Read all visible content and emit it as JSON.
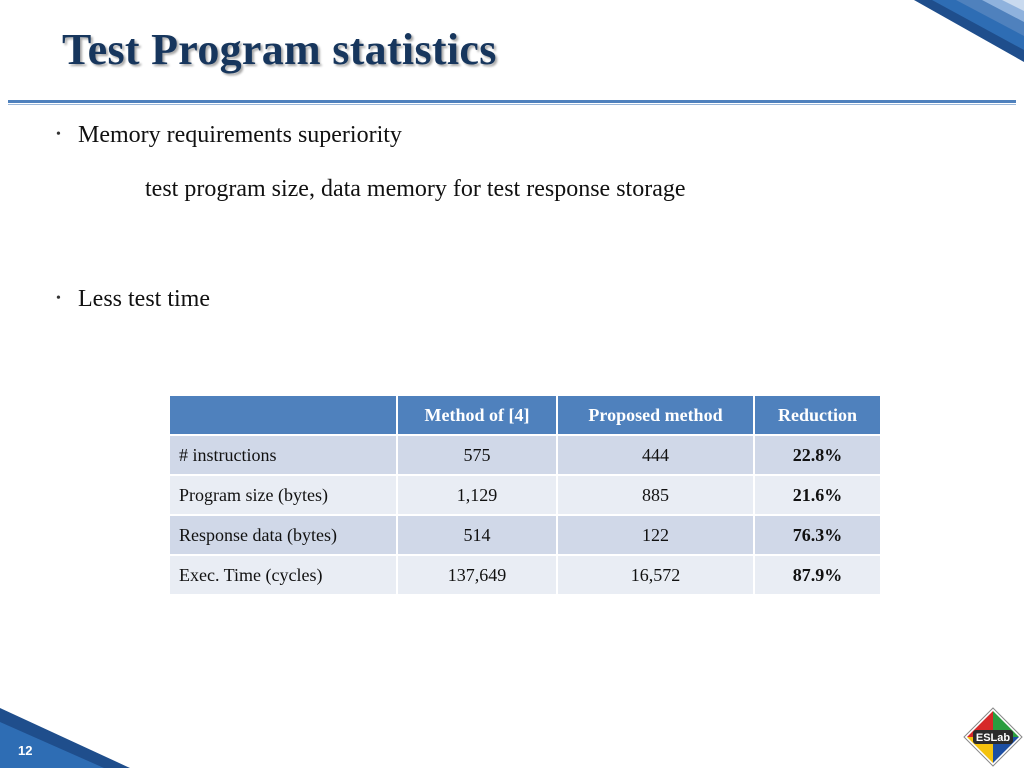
{
  "slide": {
    "title": "Test Program statistics",
    "page_number": "12",
    "logo_text": "ESLab"
  },
  "bullets": [
    {
      "text": "Memory requirements superiority",
      "subtext": "test program size, data memory for test response storage"
    },
    {
      "text": "Less test time"
    }
  ],
  "table": {
    "headers": [
      "",
      "Method of [4]",
      "Proposed method",
      "Reduction"
    ],
    "rows": [
      {
        "label": "# instructions",
        "method4": "575",
        "proposed": "444",
        "reduction": "22.8%"
      },
      {
        "label": "Program size (bytes)",
        "method4": "1,129",
        "proposed": "885",
        "reduction": "21.6%"
      },
      {
        "label": "Response data (bytes)",
        "method4": "514",
        "proposed": "122",
        "reduction": "76.3%"
      },
      {
        "label": "Exec. Time (cycles)",
        "method4": "137,649",
        "proposed": "16,572",
        "reduction": "87.9%"
      }
    ]
  },
  "colors": {
    "title": "#17365d",
    "accent": "#4f81bd",
    "row_dark": "#d0d8e8",
    "row_light": "#e9edf4"
  },
  "icons": {
    "bullet": "•",
    "corner_decoration": "blue-diagonal-stripes",
    "logo": "eslab-diamond-logo"
  }
}
